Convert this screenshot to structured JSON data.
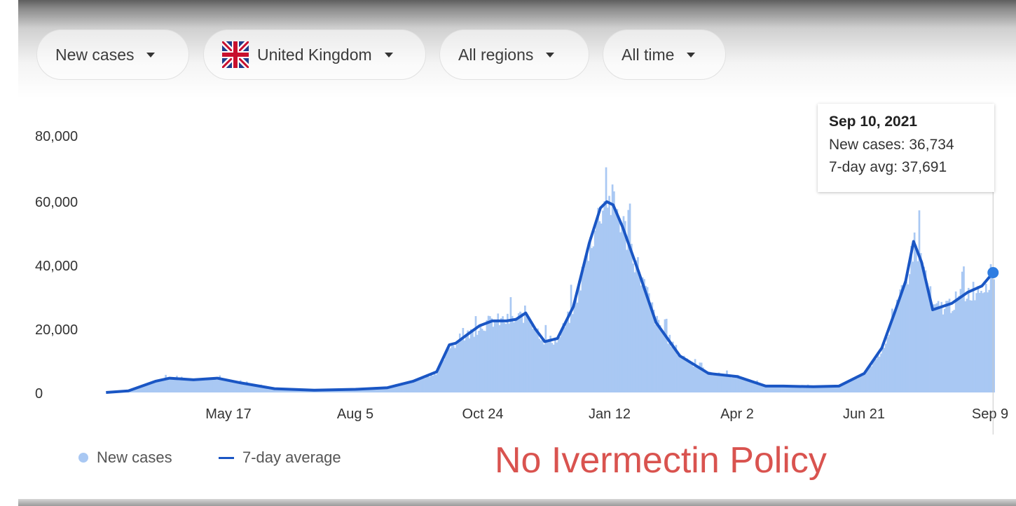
{
  "filters": {
    "metric": "New cases",
    "country": "United Kingdom",
    "region": "All regions",
    "period": "All time"
  },
  "icons": {
    "flag": "uk-flag-icon",
    "dropdown": "dropdown-caret-icon"
  },
  "colors": {
    "bar": "#a9c8f3",
    "line": "#1a56c4",
    "annotation": "#d9534f"
  },
  "tooltip": {
    "date": "Sep 10, 2021",
    "new_cases": "New cases: 36,734",
    "avg": "7-day avg: 37,691"
  },
  "legend": {
    "new_cases": "New cases",
    "avg": "7-day average"
  },
  "annotation": "No Ivermectin Policy",
  "chart_data": {
    "type": "area",
    "title": "",
    "xlabel": "",
    "ylabel": "",
    "ylim": [
      0,
      80000
    ],
    "y_ticks": [
      "80,000",
      "60,000",
      "40,000",
      "20,000",
      "0"
    ],
    "x_ticks": [
      "May 17",
      "Aug 5",
      "Oct 24",
      "Jan 12",
      "Apr 2",
      "Jun 21",
      "Sep 9"
    ],
    "grid": false,
    "legend_position": "bottom-left",
    "series": [
      {
        "name": "7-day average",
        "x": [
          "2020-03-01",
          "2020-03-15",
          "2020-04-01",
          "2020-04-10",
          "2020-04-25",
          "2020-05-10",
          "2020-05-25",
          "2020-06-15",
          "2020-07-10",
          "2020-08-05",
          "2020-08-25",
          "2020-09-10",
          "2020-09-25",
          "2020-10-03",
          "2020-10-07",
          "2020-10-15",
          "2020-10-22",
          "2020-10-30",
          "2020-11-08",
          "2020-11-14",
          "2020-11-20",
          "2020-11-26",
          "2020-12-02",
          "2020-12-10",
          "2020-12-20",
          "2020-12-30",
          "2021-01-06",
          "2021-01-10",
          "2021-01-14",
          "2021-01-20",
          "2021-01-30",
          "2021-02-10",
          "2021-02-25",
          "2021-03-15",
          "2021-04-02",
          "2021-04-20",
          "2021-05-01",
          "2021-05-20",
          "2021-06-05",
          "2021-06-21",
          "2021-07-02",
          "2021-07-10",
          "2021-07-17",
          "2021-07-22",
          "2021-07-27",
          "2021-08-03",
          "2021-08-15",
          "2021-08-25",
          "2021-09-03",
          "2021-09-10"
        ],
        "values": [
          0,
          500,
          3500,
          4500,
          4000,
          4500,
          3000,
          1200,
          700,
          1000,
          1500,
          3500,
          6500,
          15000,
          15500,
          18500,
          21000,
          22500,
          22500,
          23000,
          25000,
          20000,
          16000,
          17000,
          27000,
          47000,
          58000,
          60000,
          59000,
          52000,
          38000,
          22000,
          11500,
          6000,
          5000,
          2000,
          2000,
          1800,
          2000,
          6000,
          14000,
          25000,
          35000,
          47500,
          41000,
          26000,
          28000,
          31500,
          33500,
          37691
        ]
      }
    ]
  }
}
